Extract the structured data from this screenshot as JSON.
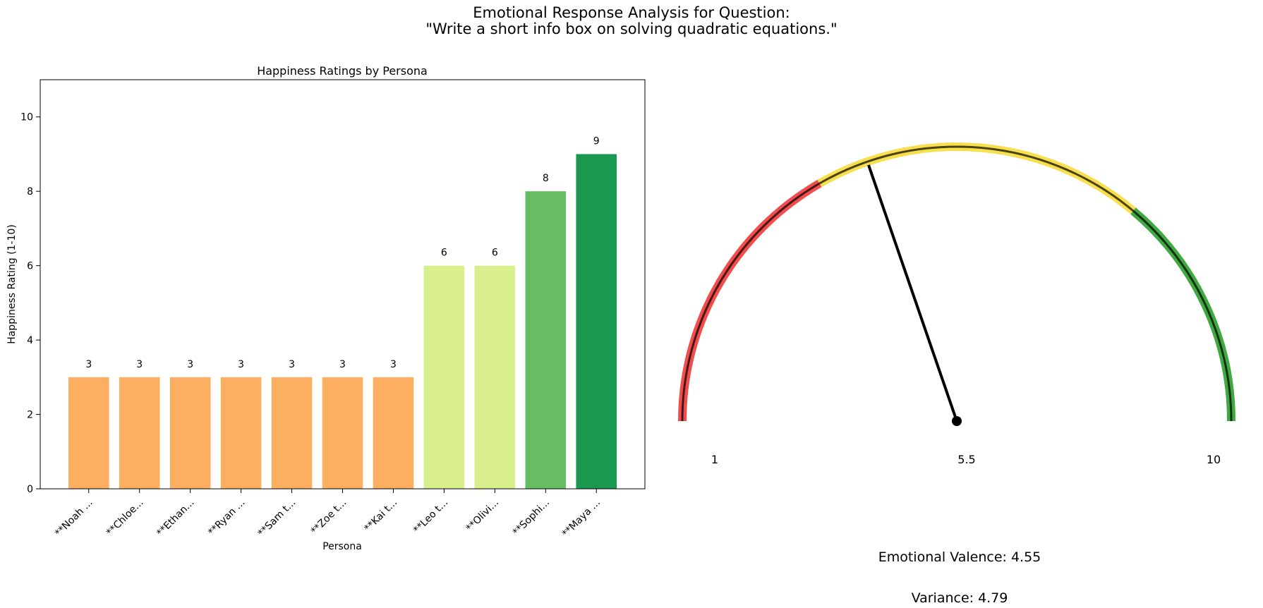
{
  "figure": {
    "title_line1": "Emotional Response Analysis for Question:",
    "title_line2": "\"Write a short info box on solving quadratic equations.\""
  },
  "chart_data": [
    {
      "type": "bar",
      "title": "Happiness Ratings by Persona",
      "xlabel": "Persona",
      "ylabel": "Happiness Rating (1-10)",
      "ylim": [
        0,
        11
      ],
      "yticks": [
        0,
        2,
        4,
        6,
        8,
        10
      ],
      "grid": false,
      "categories": [
        "**Noah ...",
        "**Chloe...",
        "**Ethan...",
        "**Ryan ...",
        "**Sam t...",
        "**Zoe t...",
        "**Kai t...",
        "**Leo t...",
        "**Olivi...",
        "**Sophi...",
        "**Maya ..."
      ],
      "values": [
        3,
        3,
        3,
        3,
        3,
        3,
        3,
        6,
        6,
        8,
        9
      ],
      "colors": [
        "#fdae61",
        "#fdae61",
        "#fdae61",
        "#fdae61",
        "#fdae61",
        "#fdae61",
        "#fdae61",
        "#d9ef8b",
        "#d9ef8b",
        "#66bd63",
        "#1a9850"
      ]
    },
    {
      "type": "gauge",
      "min": 1,
      "max": 10,
      "tick_labels": [
        "1",
        "5.5",
        "10"
      ],
      "value": 4.55,
      "zones": [
        {
          "from": 1,
          "to": 4,
          "color": "#f03a3a"
        },
        {
          "from": 4,
          "to": 7.5,
          "color": "#f7dc3a"
        },
        {
          "from": 7.5,
          "to": 10,
          "color": "#2ca02c"
        }
      ],
      "valence_label": "Emotional Valence: 4.55",
      "variance_label": "Variance: 4.79"
    }
  ]
}
